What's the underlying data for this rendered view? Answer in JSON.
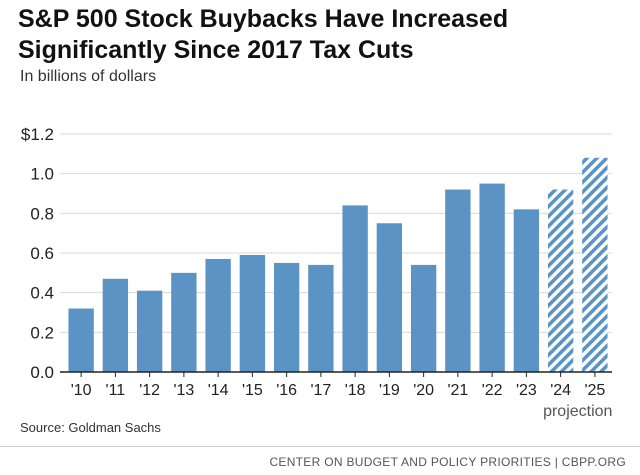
{
  "title": "S&P 500 Stock Buybacks Have Increased Significantly Since 2017 Tax Cuts",
  "subtitle": "In billions of dollars",
  "source": "Source: Goldman Sachs",
  "footer": "CENTER ON BUDGET AND POLICY PRIORITIES | CBPP.ORG",
  "projection_label": "projection",
  "colors": {
    "bar": "#5b93c4",
    "projection_stripe": "#5b93c4",
    "axis": "#222222",
    "grid": "#d9d9d9"
  },
  "chart_data": {
    "type": "bar",
    "title": "S&P 500 Stock Buybacks Have Increased Significantly Since 2017 Tax Cuts",
    "ylabel": "In billions of dollars",
    "xlabel": "",
    "categories": [
      "'10",
      "'11",
      "'12",
      "'13",
      "'14",
      "'15",
      "'16",
      "'17",
      "'18",
      "'19",
      "'20",
      "'21",
      "'22",
      "'23",
      "'24",
      "'25"
    ],
    "values": [
      0.32,
      0.47,
      0.41,
      0.5,
      0.57,
      0.59,
      0.55,
      0.54,
      0.84,
      0.75,
      0.54,
      0.92,
      0.95,
      0.82,
      0.92,
      1.08
    ],
    "projected": [
      false,
      false,
      false,
      false,
      false,
      false,
      false,
      false,
      false,
      false,
      false,
      false,
      false,
      false,
      true,
      true
    ],
    "ylim": [
      0,
      1.2
    ],
    "yticks": [
      0,
      0.2,
      0.4,
      0.6,
      0.8,
      1.0,
      1.2
    ],
    "ytick_labels": [
      "0.0",
      "0.2",
      "0.4",
      "0.6",
      "0.8",
      "1.0",
      "$1.2"
    ],
    "grid": true
  }
}
